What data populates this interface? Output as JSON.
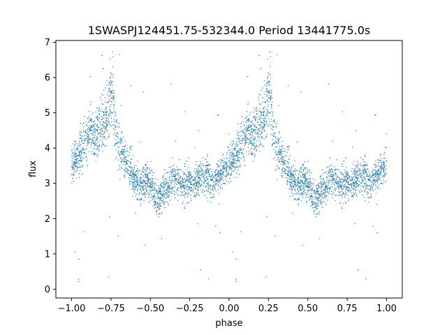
{
  "chart_data": {
    "type": "scatter",
    "title": "1SWASPJ124451.75-532344.0 Period 13441775.0s",
    "xlabel": "phase",
    "ylabel": "flux",
    "xlim": [
      -1.1,
      1.1
    ],
    "ylim": [
      -0.25,
      7.05
    ],
    "x_ticks": [
      -1.0,
      -0.75,
      -0.5,
      -0.25,
      0.0,
      0.25,
      0.5,
      0.75,
      1.0
    ],
    "x_tick_labels": [
      "−1.00",
      "−0.75",
      "−0.50",
      "−0.25",
      "0.00",
      "0.25",
      "0.50",
      "0.75",
      "1.00"
    ],
    "y_ticks": [
      0,
      1,
      2,
      3,
      4,
      5,
      6,
      7
    ],
    "y_tick_labels": [
      "0",
      "1",
      "2",
      "3",
      "4",
      "5",
      "6",
      "7"
    ],
    "grid": false,
    "series_color": "#1f77b4",
    "phase_profile": {
      "phase": [
        0.0,
        0.03,
        0.06,
        0.09,
        0.12,
        0.15,
        0.18,
        0.21,
        0.24,
        0.26,
        0.28,
        0.31,
        0.34,
        0.37,
        0.4,
        0.43,
        0.45,
        0.47,
        0.5,
        0.53,
        0.55,
        0.58,
        0.62,
        0.66,
        0.7,
        0.75,
        0.8,
        0.85,
        0.9,
        0.95,
        1.0
      ],
      "flux": [
        3.5,
        3.7,
        3.9,
        4.2,
        4.5,
        4.3,
        4.6,
        4.8,
        5.2,
        5.6,
        4.4,
        4.0,
        3.7,
        3.5,
        3.1,
        2.9,
        3.0,
        3.1,
        3.0,
        2.6,
        2.5,
        2.8,
        3.0,
        3.1,
        2.9,
        3.0,
        3.1,
        3.2,
        3.0,
        3.3,
        3.5
      ],
      "spread": [
        0.35,
        0.35,
        0.4,
        0.45,
        0.55,
        0.5,
        0.55,
        0.6,
        0.65,
        0.7,
        0.5,
        0.45,
        0.4,
        0.4,
        0.35,
        0.35,
        0.35,
        0.35,
        0.35,
        0.35,
        0.35,
        0.35,
        0.35,
        0.35,
        0.35,
        0.35,
        0.35,
        0.35,
        0.35,
        0.35,
        0.35
      ]
    },
    "notes_visible": "Phase-folded light curve repeated over phase -1 to 1; dense band around flux 3-4 with a peak near phase -0.75 and 0.25 reaching ~6.4, and a dip near phase -0.45 and 0.55 to ~2.5; sparse outliers down to ~0.1."
  }
}
